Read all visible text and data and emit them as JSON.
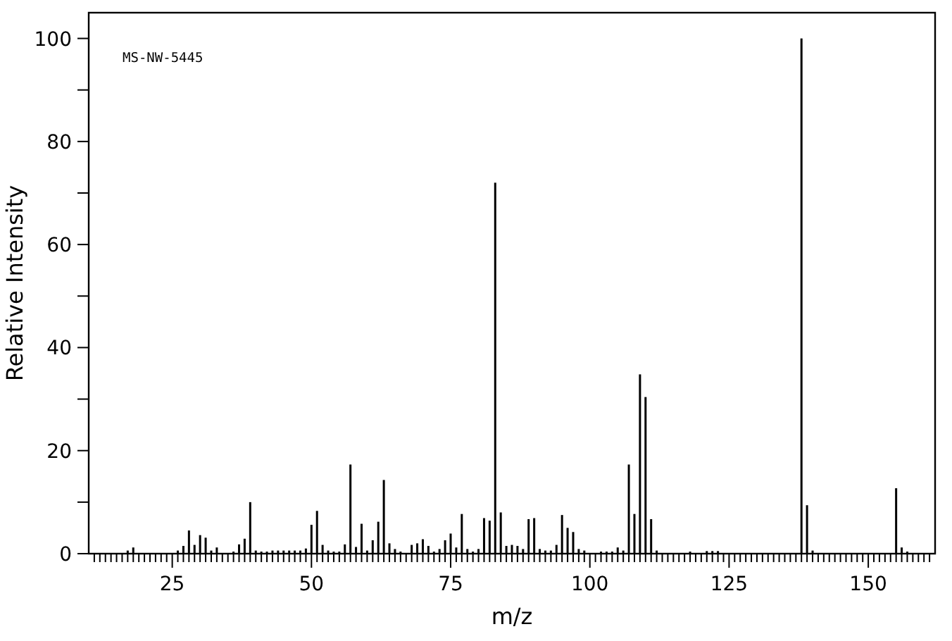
{
  "chart_data": {
    "type": "bar",
    "xlabel": "m/z",
    "ylabel": "Relative Intensity",
    "annotations": [
      "MS-NW-5445"
    ],
    "x": [
      17,
      18,
      26,
      27,
      28,
      29,
      30,
      31,
      32,
      33,
      36,
      37,
      38,
      39,
      40,
      41,
      42,
      43,
      44,
      45,
      46,
      47,
      48,
      49,
      50,
      51,
      52,
      53,
      54,
      55,
      56,
      57,
      58,
      59,
      60,
      61,
      62,
      63,
      64,
      65,
      66,
      68,
      69,
      70,
      71,
      72,
      73,
      74,
      75,
      76,
      77,
      78,
      79,
      80,
      81,
      82,
      83,
      84,
      85,
      86,
      87,
      88,
      89,
      90,
      91,
      92,
      93,
      94,
      95,
      96,
      97,
      98,
      99,
      102,
      103,
      104,
      105,
      106,
      107,
      108,
      109,
      110,
      111,
      112,
      118,
      121,
      122,
      123,
      138,
      139,
      140,
      155,
      156,
      157
    ],
    "values": [
      0.6,
      1.2,
      0.6,
      1.5,
      4.5,
      1.7,
      3.6,
      3.1,
      0.6,
      1.2,
      0.4,
      1.8,
      2.9,
      10,
      0.6,
      0.4,
      0.4,
      0.6,
      0.6,
      0.6,
      0.6,
      0.6,
      0.6,
      1.0,
      5.6,
      8.3,
      1.7,
      0.6,
      0.4,
      0.4,
      1.8,
      17.3,
      1.3,
      5.8,
      0.6,
      2.6,
      6.2,
      14.3,
      2.0,
      0.9,
      0.4,
      1.7,
      2.0,
      2.8,
      1.5,
      0.4,
      0.9,
      2.6,
      3.9,
      1.2,
      7.7,
      0.9,
      0.4,
      0.9,
      6.9,
      6.4,
      72,
      8.0,
      1.5,
      1.7,
      1.5,
      0.9,
      6.7,
      6.9,
      0.9,
      0.6,
      0.6,
      1.7,
      7.5,
      5.0,
      4.2,
      0.9,
      0.6,
      0.4,
      0.4,
      0.4,
      1.2,
      0.6,
      17.3,
      7.7,
      34.8,
      30.4,
      6.7,
      0.6,
      0.4,
      0.5,
      0.5,
      0.5,
      100,
      9.4,
      0.6,
      12.7,
      1.2,
      0.4
    ],
    "color": "#000000",
    "xlim": [
      10,
      162
    ],
    "ylim": [
      0,
      105
    ],
    "yticks": [
      0,
      {
        "value": 10,
        "label": null
      },
      20,
      {
        "value": 30,
        "label": null
      },
      40,
      {
        "value": 50,
        "label": null
      },
      60,
      {
        "value": 70,
        "label": null
      },
      80,
      {
        "value": 90,
        "label": null
      },
      100
    ],
    "xticks": [
      {
        "value": 11,
        "label": null
      },
      {
        "value": 12,
        "label": null
      },
      {
        "value": 13,
        "label": null
      },
      {
        "value": 14,
        "label": null
      },
      {
        "value": 15,
        "label": null
      },
      {
        "value": 16,
        "label": null
      },
      {
        "value": 17,
        "label": null
      },
      {
        "value": 18,
        "label": null
      },
      {
        "value": 19,
        "label": null
      },
      {
        "value": 20,
        "label": null
      },
      {
        "value": 21,
        "label": null
      },
      {
        "value": 22,
        "label": null
      },
      {
        "value": 23,
        "label": null
      },
      {
        "value": 24,
        "label": null
      },
      25,
      {
        "value": 26,
        "label": null
      },
      {
        "value": 27,
        "label": null
      },
      {
        "value": 28,
        "label": null
      },
      {
        "value": 29,
        "label": null
      },
      {
        "value": 30,
        "label": null
      },
      {
        "value": 31,
        "label": null
      },
      {
        "value": 32,
        "label": null
      },
      {
        "value": 33,
        "label": null
      },
      {
        "value": 34,
        "label": null
      },
      {
        "value": 35,
        "label": null
      },
      {
        "value": 36,
        "label": null
      },
      {
        "value": 37,
        "label": null
      },
      {
        "value": 38,
        "label": null
      },
      {
        "value": 39,
        "label": null
      },
      {
        "value": 40,
        "label": null
      },
      {
        "value": 41,
        "label": null
      },
      {
        "value": 42,
        "label": null
      },
      {
        "value": 43,
        "label": null
      },
      {
        "value": 44,
        "label": null
      },
      {
        "value": 45,
        "label": null
      },
      {
        "value": 46,
        "label": null
      },
      {
        "value": 47,
        "label": null
      },
      {
        "value": 48,
        "label": null
      },
      {
        "value": 49,
        "label": null
      },
      50,
      {
        "value": 51,
        "label": null
      },
      {
        "value": 52,
        "label": null
      },
      {
        "value": 53,
        "label": null
      },
      {
        "value": 54,
        "label": null
      },
      {
        "value": 55,
        "label": null
      },
      {
        "value": 56,
        "label": null
      },
      {
        "value": 57,
        "label": null
      },
      {
        "value": 58,
        "label": null
      },
      {
        "value": 59,
        "label": null
      },
      {
        "value": 60,
        "label": null
      },
      {
        "value": 61,
        "label": null
      },
      {
        "value": 62,
        "label": null
      },
      {
        "value": 63,
        "label": null
      },
      {
        "value": 64,
        "label": null
      },
      {
        "value": 65,
        "label": null
      },
      {
        "value": 66,
        "label": null
      },
      {
        "value": 67,
        "label": null
      },
      {
        "value": 68,
        "label": null
      },
      {
        "value": 69,
        "label": null
      },
      {
        "value": 70,
        "label": null
      },
      {
        "value": 71,
        "label": null
      },
      {
        "value": 72,
        "label": null
      },
      {
        "value": 73,
        "label": null
      },
      {
        "value": 74,
        "label": null
      },
      75,
      {
        "value": 76,
        "label": null
      },
      {
        "value": 77,
        "label": null
      },
      {
        "value": 78,
        "label": null
      },
      {
        "value": 79,
        "label": null
      },
      {
        "value": 80,
        "label": null
      },
      {
        "value": 81,
        "label": null
      },
      {
        "value": 82,
        "label": null
      },
      {
        "value": 83,
        "label": null
      },
      {
        "value": 84,
        "label": null
      },
      {
        "value": 85,
        "label": null
      },
      {
        "value": 86,
        "label": null
      },
      {
        "value": 87,
        "label": null
      },
      {
        "value": 88,
        "label": null
      },
      {
        "value": 89,
        "label": null
      },
      {
        "value": 90,
        "label": null
      },
      {
        "value": 91,
        "label": null
      },
      {
        "value": 92,
        "label": null
      },
      {
        "value": 93,
        "label": null
      },
      {
        "value": 94,
        "label": null
      },
      {
        "value": 95,
        "label": null
      },
      {
        "value": 96,
        "label": null
      },
      {
        "value": 97,
        "label": null
      },
      {
        "value": 98,
        "label": null
      },
      {
        "value": 99,
        "label": null
      },
      100,
      {
        "value": 101,
        "label": null
      },
      {
        "value": 102,
        "label": null
      },
      {
        "value": 103,
        "label": null
      },
      {
        "value": 104,
        "label": null
      },
      {
        "value": 105,
        "label": null
      },
      {
        "value": 106,
        "label": null
      },
      {
        "value": 107,
        "label": null
      },
      {
        "value": 108,
        "label": null
      },
      {
        "value": 109,
        "label": null
      },
      {
        "value": 110,
        "label": null
      },
      {
        "value": 111,
        "label": null
      },
      {
        "value": 112,
        "label": null
      },
      {
        "value": 113,
        "label": null
      },
      {
        "value": 114,
        "label": null
      },
      {
        "value": 115,
        "label": null
      },
      {
        "value": 116,
        "label": null
      },
      {
        "value": 117,
        "label": null
      },
      {
        "value": 118,
        "label": null
      },
      {
        "value": 119,
        "label": null
      },
      {
        "value": 120,
        "label": null
      },
      {
        "value": 121,
        "label": null
      },
      {
        "value": 122,
        "label": null
      },
      {
        "value": 123,
        "label": null
      },
      {
        "value": 124,
        "label": null
      },
      125,
      {
        "value": 126,
        "label": null
      },
      {
        "value": 127,
        "label": null
      },
      {
        "value": 128,
        "label": null
      },
      {
        "value": 129,
        "label": null
      },
      {
        "value": 130,
        "label": null
      },
      {
        "value": 131,
        "label": null
      },
      {
        "value": 132,
        "label": null
      },
      {
        "value": 133,
        "label": null
      },
      {
        "value": 134,
        "label": null
      },
      {
        "value": 135,
        "label": null
      },
      {
        "value": 136,
        "label": null
      },
      {
        "value": 137,
        "label": null
      },
      {
        "value": 138,
        "label": null
      },
      {
        "value": 139,
        "label": null
      },
      {
        "value": 140,
        "label": null
      },
      {
        "value": 141,
        "label": null
      },
      {
        "value": 142,
        "label": null
      },
      {
        "value": 143,
        "label": null
      },
      {
        "value": 144,
        "label": null
      },
      {
        "value": 145,
        "label": null
      },
      {
        "value": 146,
        "label": null
      },
      {
        "value": 147,
        "label": null
      },
      {
        "value": 148,
        "label": null
      },
      {
        "value": 149,
        "label": null
      },
      150,
      {
        "value": 151,
        "label": null
      },
      {
        "value": 152,
        "label": null
      },
      {
        "value": 153,
        "label": null
      },
      {
        "value": 154,
        "label": null
      },
      {
        "value": 155,
        "label": null
      },
      {
        "value": 156,
        "label": null
      },
      {
        "value": 157,
        "label": null
      },
      {
        "value": 158,
        "label": null
      },
      {
        "value": 159,
        "label": null
      },
      {
        "value": 160,
        "label": null
      },
      {
        "value": 161,
        "label": null
      }
    ]
  }
}
